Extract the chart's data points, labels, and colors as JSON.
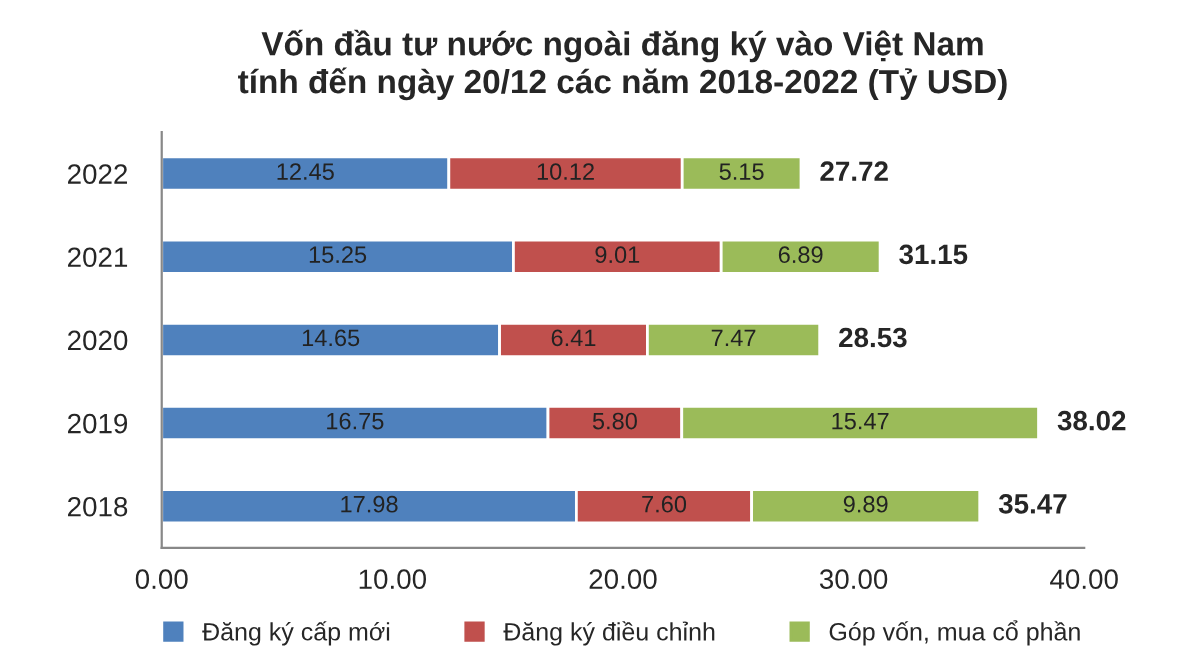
{
  "chart_data": {
    "type": "bar",
    "orientation": "horizontal",
    "stacked": true,
    "title": "Vốn đầu tư nước ngoài đăng ký vào Việt Nam\ntính đến ngày 20/12 các năm 2018-2022 (Tỷ USD)",
    "categories": [
      "2022",
      "2021",
      "2020",
      "2019",
      "2018"
    ],
    "series": [
      {
        "name": "Đăng ký cấp mới",
        "color": "#4f81bd",
        "values": [
          12.45,
          15.25,
          14.65,
          16.75,
          17.98
        ],
        "value_labels": [
          "12.45",
          "15.25",
          "14.65",
          "16.75",
          "17.98"
        ]
      },
      {
        "name": "Đăng ký điều chỉnh",
        "color": "#c0504d",
        "values": [
          10.12,
          9.01,
          6.41,
          5.8,
          7.6
        ],
        "value_labels": [
          "10.12",
          "9.01",
          "6.41",
          "5.80",
          "7.60"
        ]
      },
      {
        "name": "Góp vốn, mua cổ phần",
        "color": "#9bbb59",
        "values": [
          5.15,
          6.89,
          7.47,
          15.47,
          9.89
        ],
        "value_labels": [
          "5.15",
          "6.89",
          "7.47",
          "15.47",
          "9.89"
        ]
      }
    ],
    "totals": [
      "27.72",
      "31.15",
      "28.53",
      "38.02",
      "35.47"
    ],
    "xlim": [
      0,
      40
    ],
    "xticks": [
      {
        "value": 0,
        "label": "0.00"
      },
      {
        "value": 10,
        "label": "10.00"
      },
      {
        "value": 20,
        "label": "20.00"
      },
      {
        "value": 30,
        "label": "30.00"
      },
      {
        "value": 40,
        "label": "40.00"
      }
    ],
    "legend": "bottom"
  }
}
